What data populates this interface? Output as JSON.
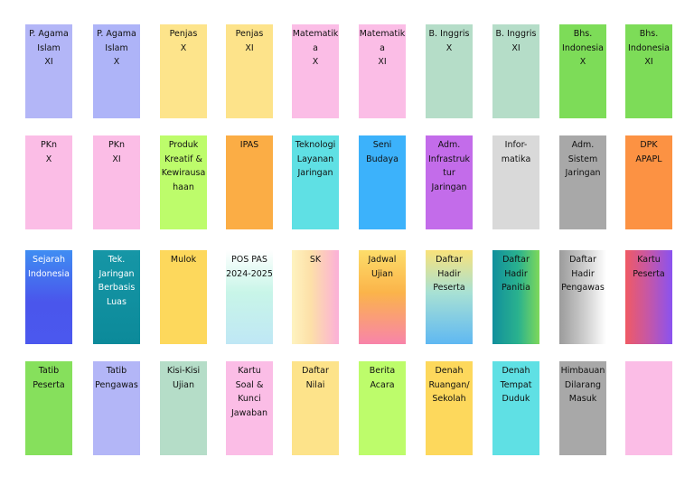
{
  "tiles": [
    {
      "label": "P. Agama\nIslam\nXI",
      "color": "#b3b6f7"
    },
    {
      "label": "P. Agama\nIslam\nX",
      "color": "#aeb4f8"
    },
    {
      "label": "Penjas\nX",
      "color": "#fde48b"
    },
    {
      "label": "Penjas\nXI",
      "color": "#fde38a"
    },
    {
      "label": "Matematika\nX",
      "color": "#fbbde6"
    },
    {
      "label": "Matematika\nXI",
      "color": "#fbbde6"
    },
    {
      "label": "B. Inggris\nX",
      "color": "#b5ddc8"
    },
    {
      "label": "B. Inggris\nXI",
      "color": "#b5ddc8"
    },
    {
      "label": "Bhs.\nIndonesia\nX",
      "color": "#7ddc58"
    },
    {
      "label": "Bhs.\nIndonesia\nXI",
      "color": "#7ddc58"
    },
    {
      "label": "PKn\nX",
      "color": "#fbbde6"
    },
    {
      "label": "PKn\nXI",
      "color": "#fbbde6"
    },
    {
      "label": "Produk\nKreatif &\nKewirausa\nhaan",
      "color": "#bdfc6b"
    },
    {
      "label": "IPAS",
      "color": "#fbad45"
    },
    {
      "label": "Teknologi\nLayanan\nJaringan",
      "color": "#5fe0e4"
    },
    {
      "label": "Seni\nBudaya",
      "color": "#3cb2fb"
    },
    {
      "label": "Adm.\nInfrastruk\ntur\nJaringan",
      "color": "#c36cea"
    },
    {
      "label": "Infor-\nmatika",
      "color": "#d9d9d9"
    },
    {
      "label": "Adm.\nSistem\nJaringan",
      "color": "#a8a8a8"
    },
    {
      "label": "DPK\nAPAPL",
      "color": "#fc9243"
    },
    {
      "label": "Sejarah\nIndonesia",
      "color": "#4b63f2"
    },
    {
      "label": "Tek.\nJaringan\nBerbasis\nLuas",
      "color": "#1697a8"
    },
    {
      "label": "Mulok",
      "color": "#fdd85c"
    },
    {
      "label": "POS PAS\n2024-2025",
      "color": "#c9f7e9"
    },
    {
      "label": "SK",
      "color": "#fdd7a3"
    },
    {
      "label": "Jadwal\nUjian",
      "color": "#fbab4a"
    },
    {
      "label": "Daftar\nHadir\nPeserta",
      "color": "#9fe0dd"
    },
    {
      "label": "Daftar\nHadir\nPanitia",
      "color": "#3fb89c"
    },
    {
      "label": "Daftar\nHadir\nPengawas",
      "color": "#d6d6d6"
    },
    {
      "label": "Kartu\nPeserta",
      "color": "#c95aa2"
    },
    {
      "label": "Tatib\nPeserta",
      "color": "#86e05c"
    },
    {
      "label": "Tatib\nPengawas",
      "color": "#b3b6f7"
    },
    {
      "label": "Kisi-Kisi\nUjian",
      "color": "#b5ddc8"
    },
    {
      "label": "Kartu\nSoal &\nKunci\nJawaban",
      "color": "#fbbde6"
    },
    {
      "label": "Daftar\nNilai",
      "color": "#fde38a"
    },
    {
      "label": "Berita\nAcara",
      "color": "#bdfc6b"
    },
    {
      "label": "Denah\nRuangan/\nSekolah",
      "color": "#fdd85c"
    },
    {
      "label": "Denah\nTempat\nDuduk",
      "color": "#5fe0e4"
    },
    {
      "label": "Himbauan\nDilarang\nMasuk",
      "color": "#a8a8a8"
    },
    {
      "label": "",
      "color": "#fbbde6"
    }
  ]
}
